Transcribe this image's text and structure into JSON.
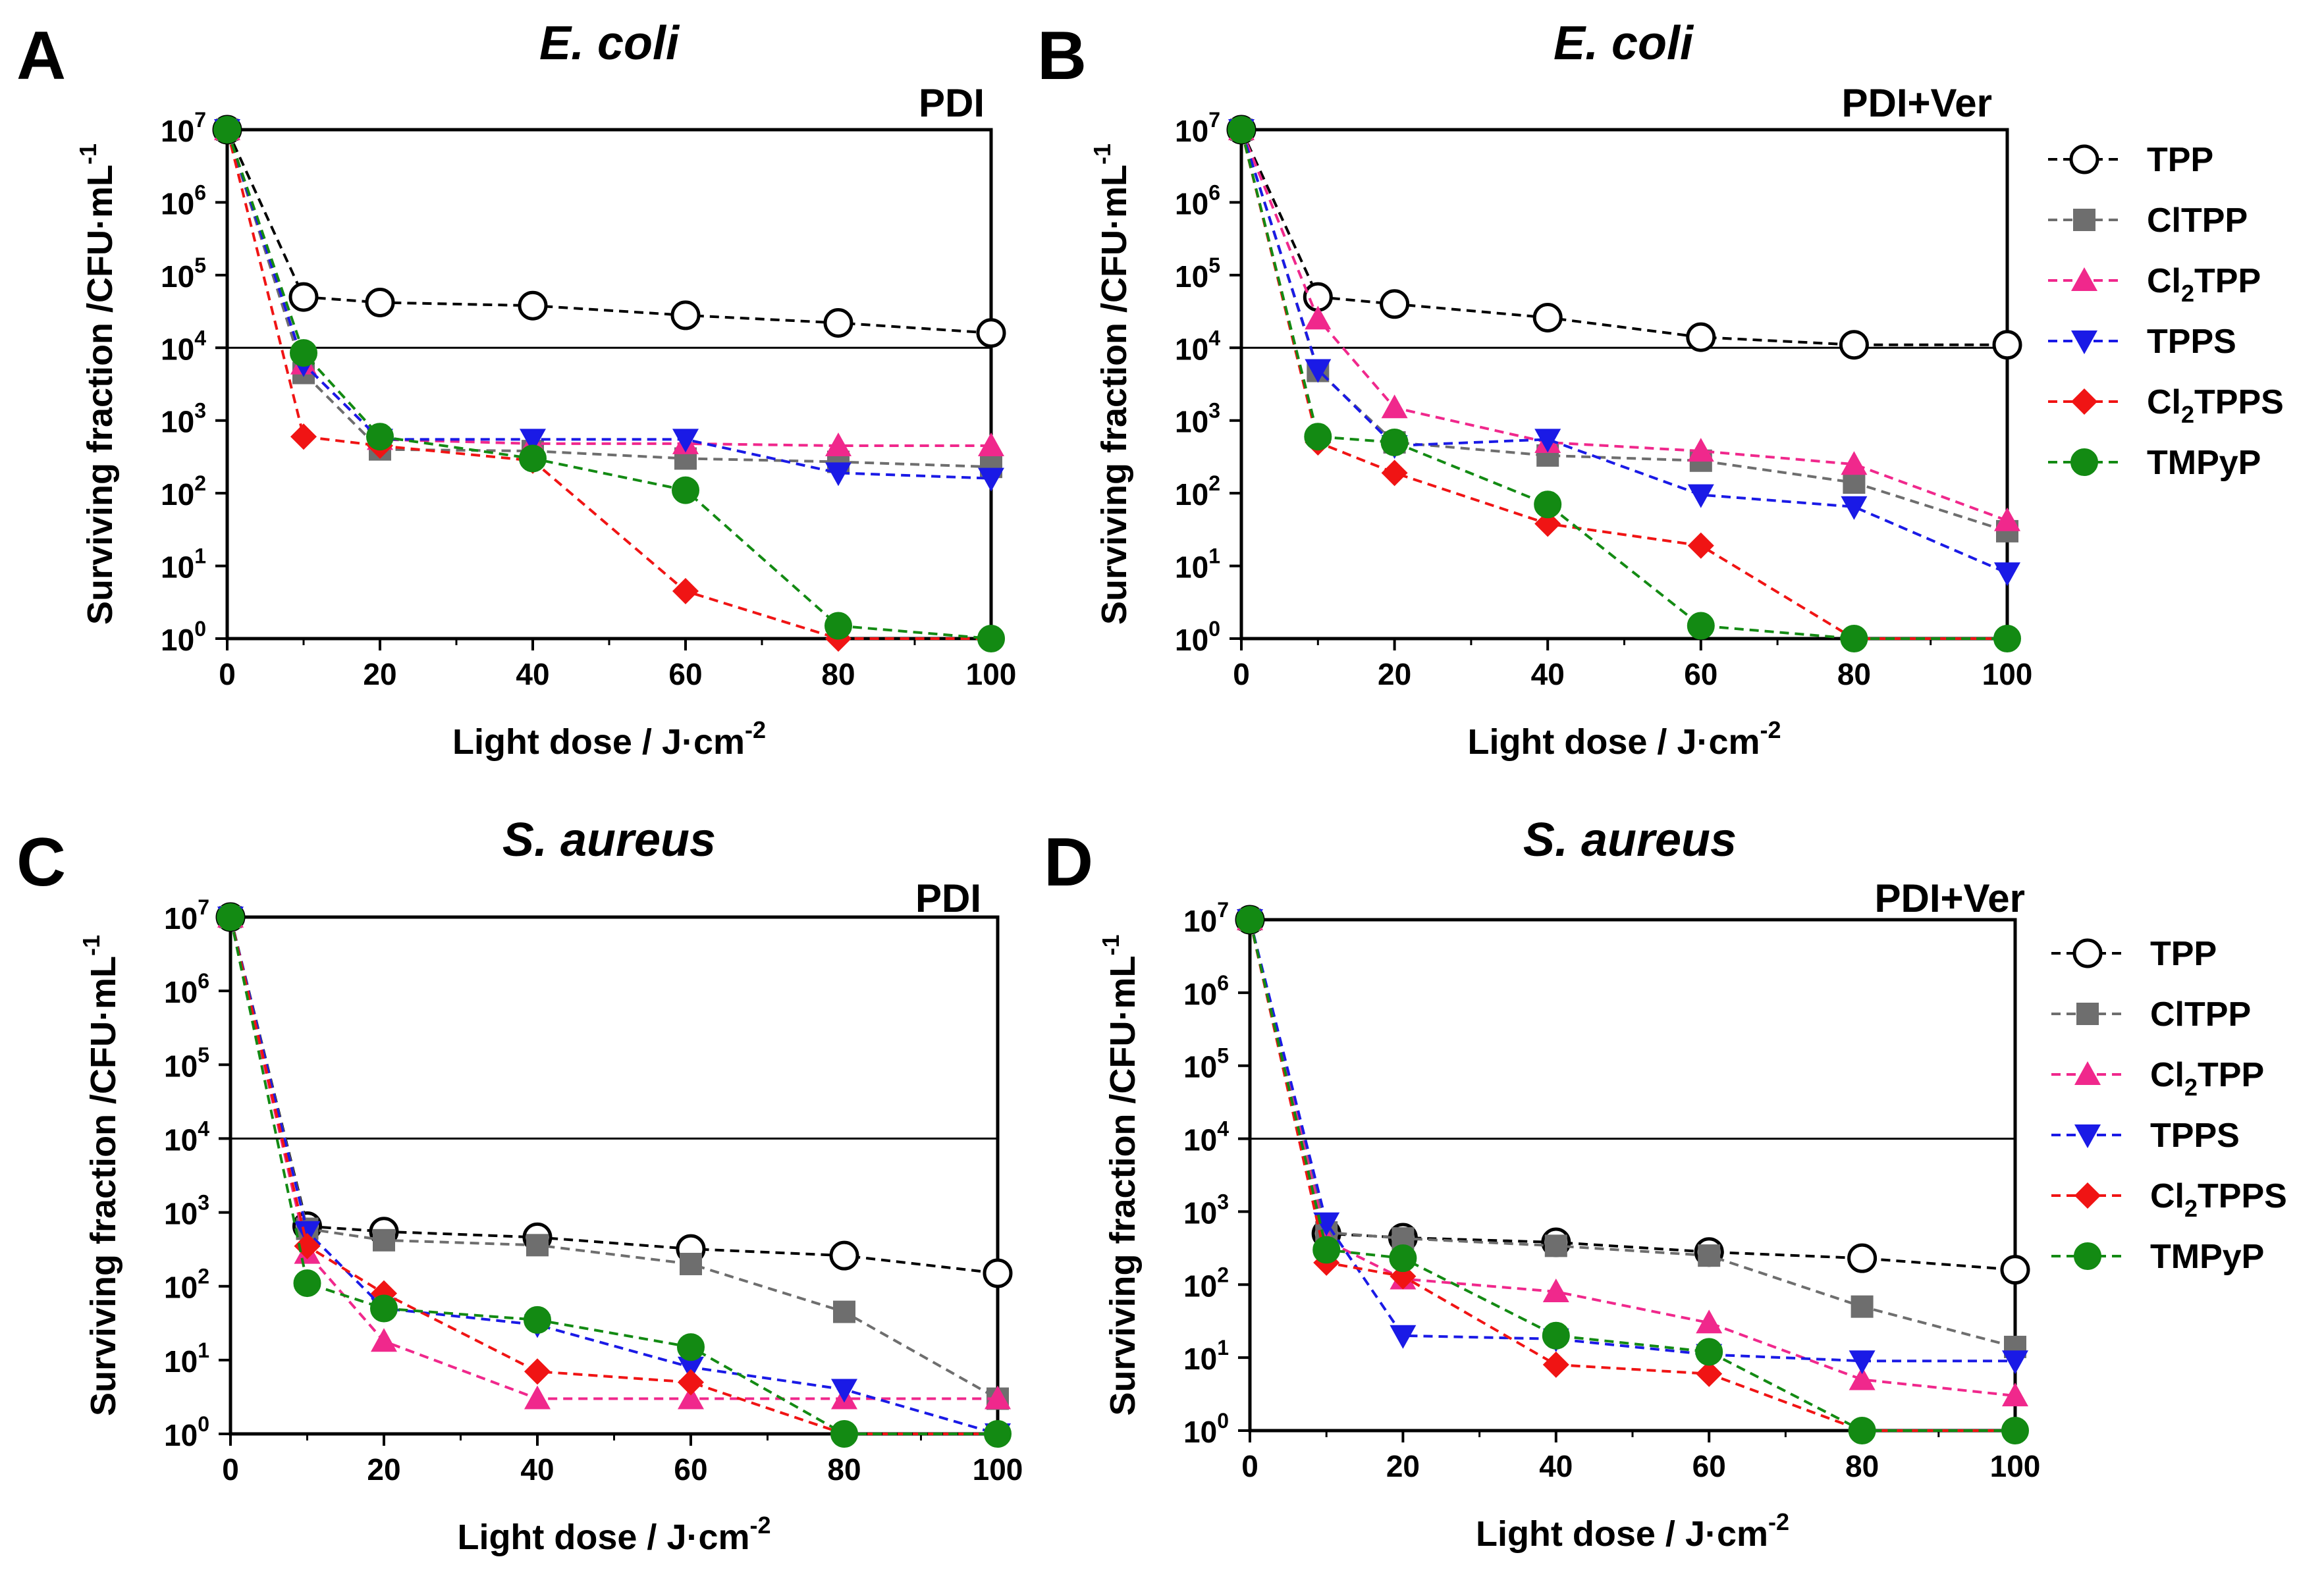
{
  "figure": {
    "legend": {
      "entries": [
        "TPP",
        "ClTPP",
        "Cl2TPP",
        "TPPS",
        "Cl2TPPS",
        "TMPyP"
      ],
      "label_parts": [
        {
          "main": "TPP",
          "sub": "",
          "rest": ""
        },
        {
          "main": "ClTPP",
          "sub": "",
          "rest": ""
        },
        {
          "main": "Cl",
          "sub": "2",
          "rest": "TPP"
        },
        {
          "main": "TPPS",
          "sub": "",
          "rest": ""
        },
        {
          "main": "Cl",
          "sub": "2",
          "rest": "TPPS"
        },
        {
          "main": "TMPyP",
          "sub": "",
          "rest": ""
        }
      ]
    },
    "series_style": [
      {
        "name": "TPP",
        "color": "#000000",
        "marker": "open-circle",
        "dash": true
      },
      {
        "name": "ClTPP",
        "color": "#6e6e6e",
        "marker": "square",
        "dash": true
      },
      {
        "name": "Cl2TPP",
        "color": "#f0288c",
        "marker": "triangle-up",
        "dash": true
      },
      {
        "name": "TPPS",
        "color": "#1a1ae6",
        "marker": "triangle-down",
        "dash": true
      },
      {
        "name": "Cl2TPPS",
        "color": "#f01414",
        "marker": "diamond",
        "dash": true
      },
      {
        "name": "TMPyP",
        "color": "#138a13",
        "marker": "filled-circle",
        "dash": true
      }
    ],
    "reference_line_value": 10000
  },
  "chart_data": [
    {
      "panel": "A",
      "type": "line",
      "title": "E. coli",
      "condition": "PDI",
      "xlabel": "Light dose / J·cm",
      "xlabel_sup": "-2",
      "ylabel": "Surviving fraction /CFU·mL",
      "ylabel_sup": "-1",
      "yscale": "log",
      "xlim": [
        0,
        100
      ],
      "ylim": [
        1,
        10000000
      ],
      "x_ticks": [
        0,
        20,
        40,
        60,
        80,
        100
      ],
      "y_ticks": [
        "10",
        "10",
        "10",
        "10",
        "10",
        "10",
        "10",
        "10"
      ],
      "y_tick_exponents": [
        "0",
        "1",
        "2",
        "3",
        "4",
        "5",
        "6",
        "7"
      ],
      "x": [
        0,
        10,
        20,
        40,
        60,
        80,
        100
      ],
      "series": [
        {
          "name": "TPP",
          "values": [
            10000000,
            50000,
            42000,
            38000,
            28000,
            22000,
            16000
          ]
        },
        {
          "name": "ClTPP",
          "values": [
            10000000,
            4500,
            400,
            380,
            300,
            270,
            230
          ]
        },
        {
          "name": "Cl2TPP",
          "values": [
            10000000,
            6000,
            550,
            480,
            480,
            450,
            450
          ]
        },
        {
          "name": "TPPS",
          "values": [
            10000000,
            6000,
            550,
            550,
            550,
            190,
            160
          ]
        },
        {
          "name": "Cl2TPPS",
          "values": [
            10000000,
            600,
            450,
            280,
            4.5,
            1,
            1
          ]
        },
        {
          "name": "TMPyP",
          "values": [
            10000000,
            8500,
            600,
            300,
            110,
            1.5,
            1
          ]
        }
      ]
    },
    {
      "panel": "B",
      "type": "line",
      "title": "E. coli",
      "condition": "PDI+Ver",
      "xlabel": "Light dose / J·cm",
      "xlabel_sup": "-2",
      "ylabel": "Surviving fraction /CFU·mL",
      "ylabel_sup": "-1",
      "yscale": "log",
      "xlim": [
        0,
        100
      ],
      "ylim": [
        1,
        10000000
      ],
      "x_ticks": [
        0,
        20,
        40,
        60,
        80,
        100
      ],
      "y_ticks": [
        "10",
        "10",
        "10",
        "10",
        "10",
        "10",
        "10",
        "10"
      ],
      "y_tick_exponents": [
        "0",
        "1",
        "2",
        "3",
        "4",
        "5",
        "6",
        "7"
      ],
      "x": [
        0,
        10,
        20,
        40,
        60,
        80,
        100
      ],
      "series": [
        {
          "name": "TPP",
          "values": [
            10000000,
            50000,
            40000,
            26000,
            14000,
            11000,
            11000
          ]
        },
        {
          "name": "ClTPP",
          "values": [
            10000000,
            4800,
            500,
            330,
            280,
            140,
            30
          ]
        },
        {
          "name": "Cl2TPP",
          "values": [
            10000000,
            25000,
            1500,
            500,
            380,
            250,
            42
          ]
        },
        {
          "name": "TPPS",
          "values": [
            10000000,
            5000,
            450,
            550,
            95,
            65,
            8
          ]
        },
        {
          "name": "Cl2TPPS",
          "values": [
            10000000,
            500,
            190,
            38,
            19,
            1,
            1
          ]
        },
        {
          "name": "TMPyP",
          "values": [
            10000000,
            600,
            500,
            70,
            1.5,
            1,
            1
          ]
        }
      ]
    },
    {
      "panel": "C",
      "type": "line",
      "title": "S. aureus",
      "condition": "PDI",
      "xlabel": "Light dose / J·cm",
      "xlabel_sup": "-2",
      "ylabel": "Surviving fraction /CFU·mL",
      "ylabel_sup": "-1",
      "yscale": "log",
      "xlim": [
        0,
        100
      ],
      "ylim": [
        1,
        10000000
      ],
      "x_ticks": [
        0,
        20,
        40,
        60,
        80,
        100
      ],
      "y_ticks": [
        "10",
        "10",
        "10",
        "10",
        "10",
        "10",
        "10",
        "10"
      ],
      "y_tick_exponents": [
        "0",
        "1",
        "2",
        "3",
        "4",
        "5",
        "6",
        "7"
      ],
      "x": [
        0,
        10,
        20,
        40,
        60,
        80,
        100
      ],
      "series": [
        {
          "name": "TPP",
          "values": [
            10000000,
            650,
            550,
            460,
            320,
            260,
            150
          ]
        },
        {
          "name": "ClTPP",
          "values": [
            10000000,
            600,
            420,
            360,
            200,
            45,
            3
          ]
        },
        {
          "name": "Cl2TPP",
          "values": [
            10000000,
            280,
            18,
            3,
            3,
            3,
            3
          ]
        },
        {
          "name": "TPPS",
          "values": [
            10000000,
            550,
            50,
            30,
            8,
            4,
            1
          ]
        },
        {
          "name": "Cl2TPPS",
          "values": [
            10000000,
            350,
            80,
            7,
            5,
            1,
            1
          ]
        },
        {
          "name": "TMPyP",
          "values": [
            10000000,
            110,
            50,
            35,
            15,
            1,
            1
          ]
        }
      ]
    },
    {
      "panel": "D",
      "type": "line",
      "title": "S. aureus",
      "condition": "PDI+Ver",
      "xlabel": "Light dose / J·cm",
      "xlabel_sup": "-2",
      "ylabel": "Surviving fraction /CFU·mL",
      "ylabel_sup": "-1",
      "yscale": "log",
      "xlim": [
        0,
        100
      ],
      "ylim": [
        1,
        10000000
      ],
      "x_ticks": [
        0,
        20,
        40,
        60,
        80,
        100
      ],
      "y_ticks": [
        "10",
        "10",
        "10",
        "10",
        "10",
        "10",
        "10",
        "10"
      ],
      "y_tick_exponents": [
        "0",
        "1",
        "2",
        "3",
        "4",
        "5",
        "6",
        "7"
      ],
      "x": [
        0,
        10,
        20,
        40,
        60,
        80,
        100
      ],
      "series": [
        {
          "name": "TPP",
          "values": [
            10000000,
            500,
            440,
            380,
            280,
            230,
            160
          ]
        },
        {
          "name": "ClTPP",
          "values": [
            10000000,
            520,
            430,
            340,
            250,
            50,
            14
          ]
        },
        {
          "name": "Cl2TPP",
          "values": [
            10000000,
            400,
            120,
            80,
            30,
            5,
            3
          ]
        },
        {
          "name": "TPPS",
          "values": [
            10000000,
            700,
            20,
            18,
            11,
            9,
            9
          ]
        },
        {
          "name": "Cl2TPPS",
          "values": [
            10000000,
            200,
            130,
            8,
            6,
            1,
            1
          ]
        },
        {
          "name": "TMPyP",
          "values": [
            10000000,
            300,
            230,
            20,
            12,
            1,
            1
          ]
        }
      ]
    }
  ]
}
